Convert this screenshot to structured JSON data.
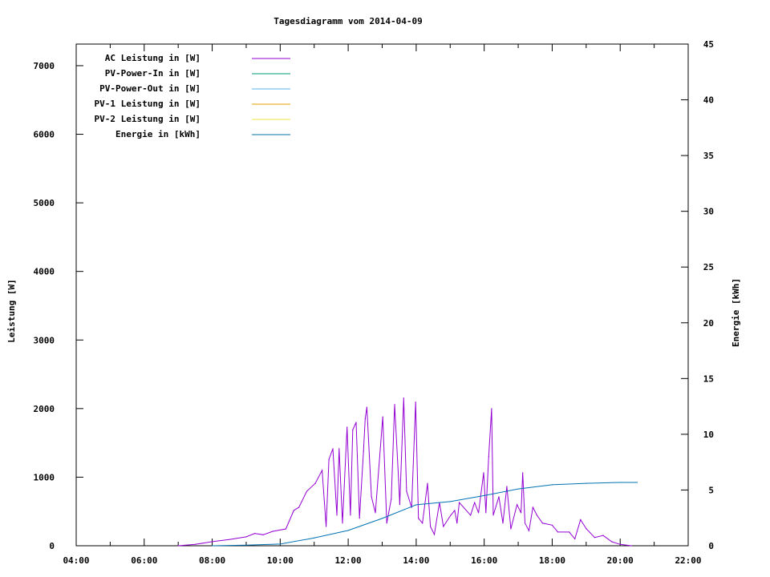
{
  "chart_data": {
    "type": "line",
    "title": "Tagesdiagramm vom 2014-04-09",
    "xlabel": "",
    "ylabel": "Leistung [W]",
    "y2label": "Energie [kWh]",
    "xlim_hours": [
      4,
      22
    ],
    "ylim": [
      0,
      7315
    ],
    "y2lim": [
      0,
      45
    ],
    "x_ticks": [
      "04:00",
      "06:00",
      "08:00",
      "10:00",
      "12:00",
      "14:00",
      "16:00",
      "18:00",
      "20:00",
      "22:00"
    ],
    "y_ticks": [
      "0",
      "1000",
      "2000",
      "3000",
      "4000",
      "5000",
      "6000",
      "7000"
    ],
    "y2_ticks": [
      "0",
      "5",
      "10",
      "15",
      "20",
      "25",
      "30",
      "35",
      "40",
      "45"
    ],
    "grid": false,
    "legend_placement": "top-left",
    "legend": [
      {
        "name": "AC Leistung in [W]",
        "color": "#9400d3"
      },
      {
        "name": "PV-Power-In in [W]",
        "color": "#009e73"
      },
      {
        "name": "PV-Power-Out in [W]",
        "color": "#56b4e9"
      },
      {
        "name": "PV-1 Leistung in [W]",
        "color": "#e69f00"
      },
      {
        "name": "PV-2 Leistung in [W]",
        "color": "#f0e442"
      },
      {
        "name": "Energie in [kWh]",
        "color": "#0072b2"
      }
    ],
    "series": [
      {
        "name": "AC Leistung in [W]",
        "axis": "left",
        "color": "#9400d3",
        "x": [
          "07:00",
          "07:30",
          "08:00",
          "08:30",
          "09:00",
          "09:15",
          "09:30",
          "09:47",
          "10:10",
          "10:24",
          "10:33",
          "10:47",
          "11:02",
          "11:14",
          "11:21",
          "11:26",
          "11:33",
          "11:40",
          "11:44",
          "11:50",
          "11:58",
          "12:04",
          "12:08",
          "12:14",
          "12:20",
          "12:27",
          "12:30",
          "12:33",
          "12:41",
          "12:48",
          "13:01",
          "13:08",
          "13:16",
          "13:22",
          "13:29",
          "13:31",
          "13:38",
          "13:43",
          "13:52",
          "13:59",
          "14:04",
          "14:11",
          "14:20",
          "14:25",
          "14:32",
          "14:41",
          "14:48",
          "15:01",
          "15:08",
          "15:12",
          "15:16",
          "15:36",
          "15:43",
          "15:50",
          "15:59",
          "16:03",
          "16:08",
          "16:13",
          "16:16",
          "16:26",
          "16:33",
          "16:40",
          "16:47",
          "16:58",
          "17:05",
          "17:08",
          "17:12",
          "17:19",
          "17:26",
          "17:33",
          "17:43",
          "18:00",
          "18:10",
          "18:30",
          "18:40",
          "18:50",
          "19:00",
          "19:15",
          "19:30",
          "19:45",
          "20:00",
          "20:20"
        ],
        "values": [
          0,
          20,
          60,
          90,
          130,
          180,
          160,
          210,
          245,
          515,
          560,
          795,
          910,
          1100,
          280,
          1260,
          1415,
          445,
          1415,
          330,
          1730,
          445,
          1690,
          1800,
          400,
          1380,
          1850,
          2020,
          715,
          480,
          1880,
          330,
          680,
          2060,
          950,
          600,
          2155,
          795,
          560,
          2095,
          400,
          330,
          910,
          280,
          165,
          630,
          280,
          445,
          515,
          330,
          630,
          445,
          630,
          480,
          1065,
          480,
          1300,
          2000,
          445,
          715,
          330,
          865,
          245,
          600,
          480,
          1065,
          330,
          220,
          560,
          445,
          330,
          300,
          200,
          200,
          100,
          380,
          250,
          120,
          150,
          60,
          20,
          0
        ]
      },
      {
        "name": "Energie in [kWh]",
        "axis": "right",
        "color": "#0072b2",
        "x": [
          "08:00",
          "09:00",
          "10:00",
          "11:00",
          "12:00",
          "13:00",
          "14:00",
          "15:00",
          "16:00",
          "17:00",
          "18:00",
          "19:00",
          "20:00",
          "20:30"
        ],
        "values": [
          0,
          0.05,
          0.15,
          0.7,
          1.37,
          2.45,
          3.67,
          3.96,
          4.5,
          5.1,
          5.47,
          5.6,
          5.68,
          5.68
        ]
      }
    ]
  }
}
